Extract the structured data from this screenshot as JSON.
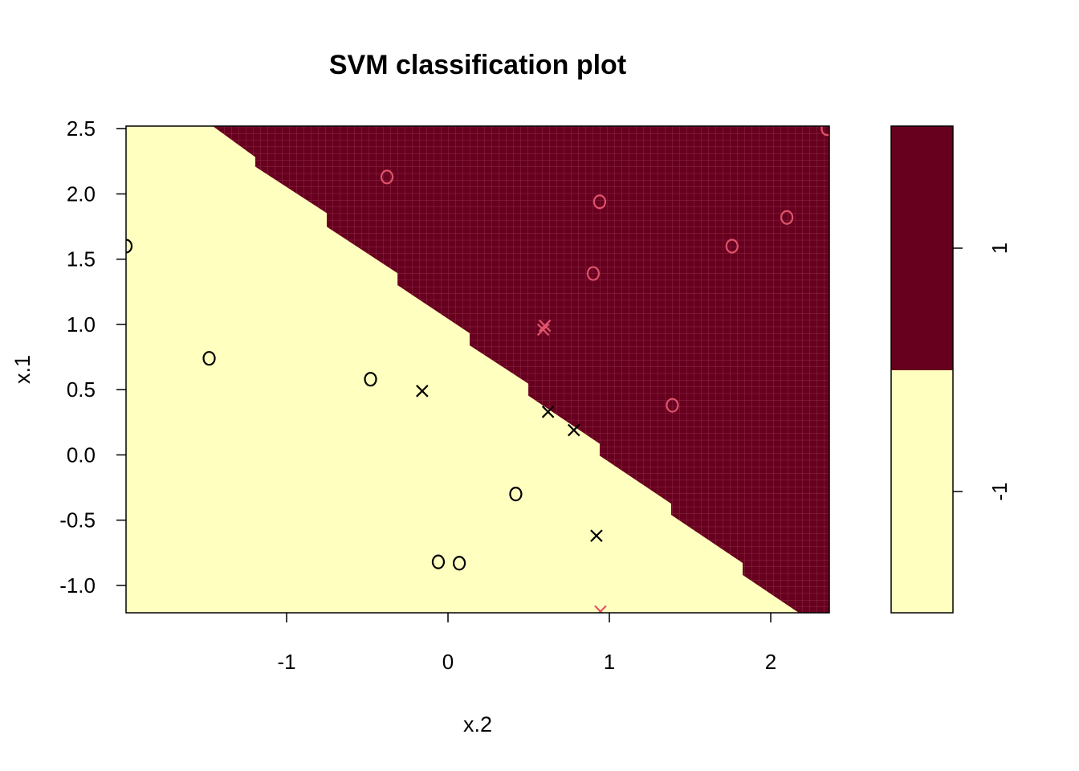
{
  "chart_data": {
    "type": "scatter",
    "title": "SVM classification plot",
    "xlabel": "x.2",
    "ylabel": "x.1",
    "xlim": [
      -1.995,
      2.363
    ],
    "ylim": [
      -1.21,
      2.52
    ],
    "xticks": [
      -1,
      0,
      1,
      2
    ],
    "xtick_labels": [
      "-1",
      "0",
      "1",
      "2"
    ],
    "yticks": [
      -1.0,
      -0.5,
      0.0,
      0.5,
      1.0,
      1.5,
      2.0,
      2.5
    ],
    "ytick_labels": [
      "-1.0",
      "-0.5",
      "0.0",
      "0.5",
      "1.0",
      "1.5",
      "2.0",
      "2.5"
    ],
    "colors": {
      "class_pos": "#67001F",
      "class_neg": "#FFFFBF",
      "point_pos": "#DF536B",
      "point_neg": "#000000"
    },
    "decision_boundary": [
      [
        -1.458,
        2.52
      ],
      [
        -1.194,
        2.282
      ],
      [
        -1.194,
        2.209
      ],
      [
        -0.751,
        1.853
      ],
      [
        -0.751,
        1.748
      ],
      [
        -0.313,
        1.393
      ],
      [
        -0.313,
        1.301
      ],
      [
        0.134,
        0.933
      ],
      [
        0.134,
        0.84
      ],
      [
        0.498,
        0.546
      ],
      [
        0.498,
        0.454
      ],
      [
        0.94,
        0.086
      ],
      [
        0.94,
        -0.006
      ],
      [
        1.383,
        -0.374
      ],
      [
        1.383,
        -0.46
      ],
      [
        1.826,
        -0.828
      ],
      [
        1.826,
        -0.92
      ],
      [
        2.174,
        -1.21
      ]
    ],
    "points": [
      {
        "x": -0.378,
        "y": 2.13,
        "class": "1",
        "sv": false
      },
      {
        "x": 0.94,
        "y": 1.94,
        "class": "1",
        "sv": false
      },
      {
        "x": 2.1,
        "y": 1.82,
        "class": "1",
        "sv": false
      },
      {
        "x": 1.76,
        "y": 1.6,
        "class": "1",
        "sv": false
      },
      {
        "x": 0.9,
        "y": 1.39,
        "class": "1",
        "sv": false
      },
      {
        "x": 0.59,
        "y": 0.96,
        "class": "1",
        "sv": true
      },
      {
        "x": 0.6,
        "y": 0.99,
        "class": "1",
        "sv": true
      },
      {
        "x": 1.39,
        "y": 0.38,
        "class": "1",
        "sv": false
      },
      {
        "x": 0.945,
        "y": -1.2,
        "class": "1",
        "sv": true
      },
      {
        "x": 2.35,
        "y": 2.5,
        "class": "1",
        "sv": false
      },
      {
        "x": -1.995,
        "y": 1.6,
        "class": "-1",
        "sv": false
      },
      {
        "x": -1.48,
        "y": 0.74,
        "class": "-1",
        "sv": false
      },
      {
        "x": -0.48,
        "y": 0.58,
        "class": "-1",
        "sv": false
      },
      {
        "x": -0.16,
        "y": 0.49,
        "class": "-1",
        "sv": true
      },
      {
        "x": 0.62,
        "y": 0.33,
        "class": "-1",
        "sv": true
      },
      {
        "x": 0.78,
        "y": 0.19,
        "class": "-1",
        "sv": true
      },
      {
        "x": 0.42,
        "y": -0.3,
        "class": "-1",
        "sv": false
      },
      {
        "x": 0.92,
        "y": -0.62,
        "class": "-1",
        "sv": true
      },
      {
        "x": -0.06,
        "y": -0.82,
        "class": "-1",
        "sv": false
      },
      {
        "x": 0.07,
        "y": -0.83,
        "class": "-1",
        "sv": false
      }
    ],
    "legend": {
      "placement": "right",
      "labels": [
        "1",
        "-1"
      ]
    }
  }
}
